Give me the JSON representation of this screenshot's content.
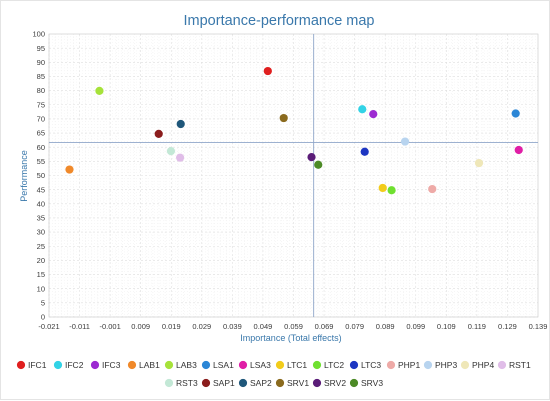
{
  "chart_data": {
    "type": "scatter",
    "title": "Importance-performance map",
    "xlabel": "Importance (Total effects)",
    "ylabel": "Performance",
    "xlim": [
      -0.021,
      0.139
    ],
    "ylim": [
      0,
      100
    ],
    "x_ticks": [
      "-0.021",
      "-0.011",
      "-0.001",
      "0.009",
      "0.019",
      "0.029",
      "0.039",
      "0.049",
      "0.059",
      "0.069",
      "0.079",
      "0.089",
      "0.099",
      "0.109",
      "0.119",
      "0.129",
      "0.139"
    ],
    "y_ticks": [
      "0",
      "5",
      "10",
      "15",
      "20",
      "25",
      "30",
      "35",
      "40",
      "45",
      "50",
      "55",
      "60",
      "65",
      "70",
      "75",
      "80",
      "85",
      "90",
      "95",
      "100"
    ],
    "grid": true,
    "legend_position": "bottom",
    "reference_lines": {
      "x": 0.0656,
      "y": 61.7
    },
    "series": [
      {
        "name": "IFC1",
        "color": "#e01f1f",
        "x": 0.0506,
        "y": 86.9
      },
      {
        "name": "IFC2",
        "color": "#32d3e6",
        "x": 0.0815,
        "y": 73.4
      },
      {
        "name": "IFC3",
        "color": "#9c2ad1",
        "x": 0.0851,
        "y": 71.7
      },
      {
        "name": "LAB1",
        "color": "#f0892a",
        "x": -0.0143,
        "y": 52.1
      },
      {
        "name": "LAB3",
        "color": "#a6e23a",
        "x": -0.0045,
        "y": 79.9
      },
      {
        "name": "LSA1",
        "color": "#2b86d6",
        "x": 0.1317,
        "y": 71.9
      },
      {
        "name": "LSA3",
        "color": "#e01ea6",
        "x": 0.1327,
        "y": 59.0
      },
      {
        "name": "LTC1",
        "color": "#f2cc1b",
        "x": 0.0882,
        "y": 45.6
      },
      {
        "name": "LTC2",
        "color": "#6fe030",
        "x": 0.0911,
        "y": 44.8
      },
      {
        "name": "LTC3",
        "color": "#1d36c2",
        "x": 0.0823,
        "y": 58.4
      },
      {
        "name": "PHP1",
        "color": "#eeaaa7",
        "x": 0.1044,
        "y": 45.2
      },
      {
        "name": "PHP3",
        "color": "#b8d4ef",
        "x": 0.0955,
        "y": 62.0
      },
      {
        "name": "PHP4",
        "color": "#efe7b8",
        "x": 0.1197,
        "y": 54.4
      },
      {
        "name": "RST1",
        "color": "#e0bde8",
        "x": 0.0219,
        "y": 56.3
      },
      {
        "name": "RST3",
        "color": "#c3e8d6",
        "x": 0.0189,
        "y": 58.6
      },
      {
        "name": "SAP1",
        "color": "#8a1c1c",
        "x": 0.0149,
        "y": 64.7
      },
      {
        "name": "SAP2",
        "color": "#1f577a",
        "x": 0.0221,
        "y": 68.2
      },
      {
        "name": "SRV1",
        "color": "#8a6a1e",
        "x": 0.0558,
        "y": 70.3
      },
      {
        "name": "SRV2",
        "color": "#5a1c78",
        "x": 0.0649,
        "y": 56.5
      },
      {
        "name": "SRV3",
        "color": "#4c8a26",
        "x": 0.0671,
        "y": 53.8
      }
    ]
  }
}
